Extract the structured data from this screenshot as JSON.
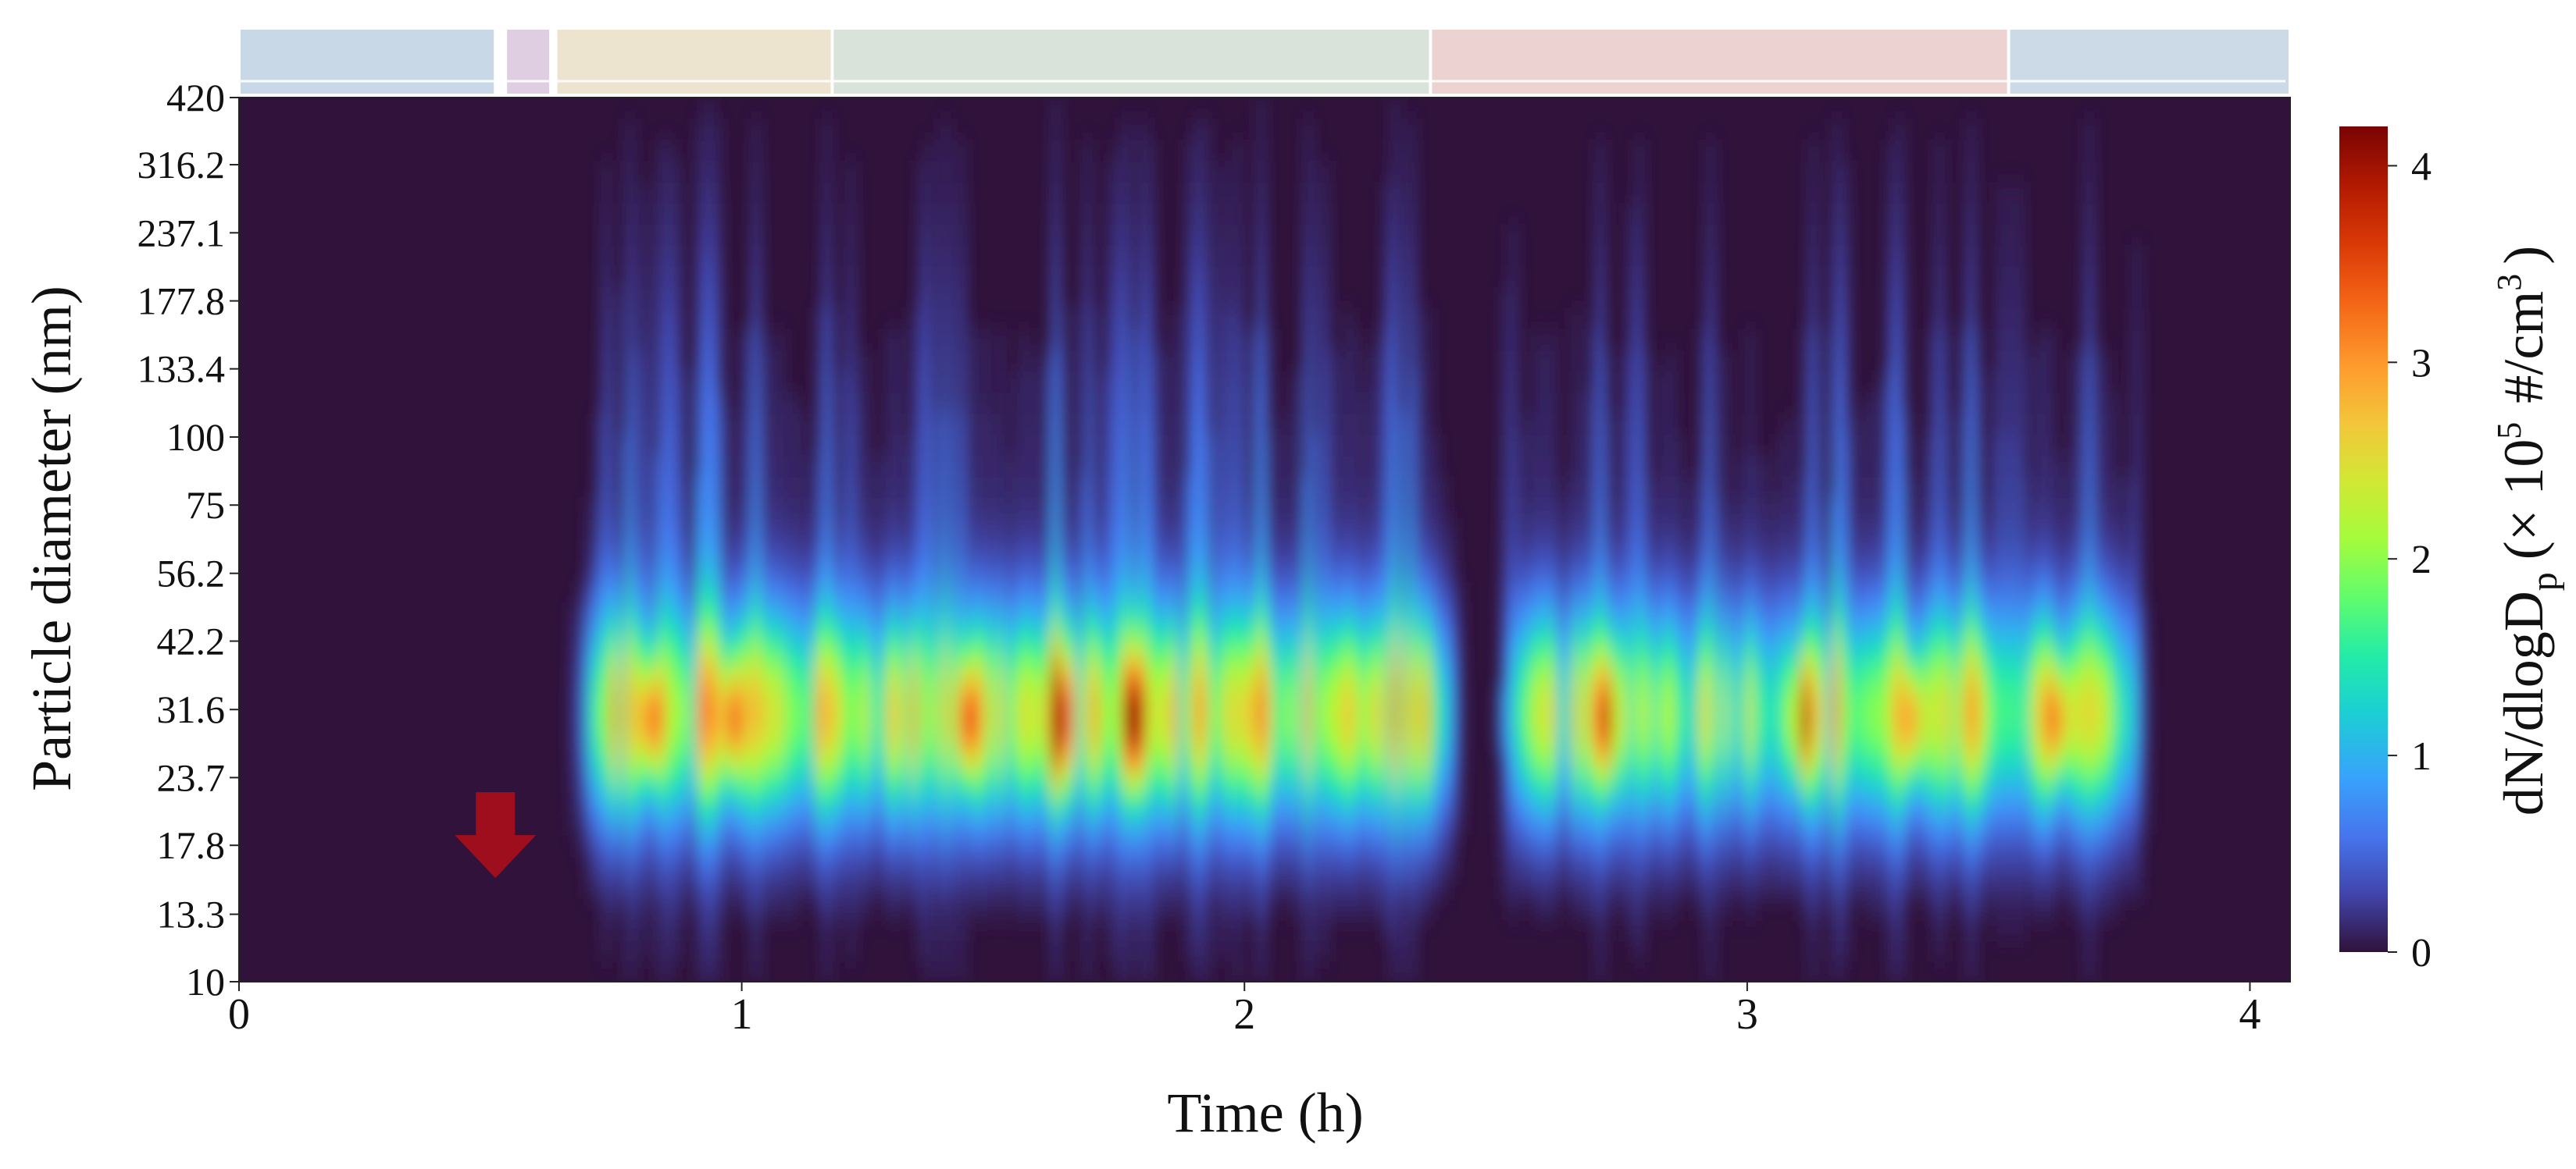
{
  "chart_data": {
    "type": "heatmap",
    "title": "",
    "xlabel": "Time (h)",
    "ylabel": "Particle diameter (nm)",
    "xlim": [
      0,
      4.08
    ],
    "x_ticks": [
      0,
      1,
      2,
      3,
      4
    ],
    "x_tick_labels": [
      "0",
      "1",
      "2",
      "3",
      "4"
    ],
    "y_scale": "log",
    "ylim": [
      10,
      420
    ],
    "y_ticks": [
      10,
      13.3,
      17.8,
      23.7,
      31.6,
      42.2,
      56.2,
      75,
      100,
      133.4,
      177.8,
      237.1,
      316.2,
      420
    ],
    "y_tick_labels": [
      "10",
      "13.3",
      "17.8",
      "23.7",
      "31.6",
      "42.2",
      "56.2",
      "75",
      "100",
      "133.4",
      "177.8",
      "237.1",
      "316.2",
      "420"
    ],
    "colorbar": {
      "label_main": "dN/dlogD",
      "label_sub": "p",
      "label_open": "(× 10",
      "label_exp": "5",
      "label_units": "#/cm",
      "label_units_exp": "3",
      "label_close": ")",
      "range": [
        0,
        4.2
      ],
      "ticks": [
        0,
        1,
        2,
        3,
        4
      ],
      "tick_labels": [
        "0",
        "1",
        "2",
        "3",
        "4"
      ],
      "colormap": "turbo"
    },
    "phase_bands": [
      {
        "start": 0.0,
        "end": 0.51,
        "color": "#c6d6e6"
      },
      {
        "start": 0.53,
        "end": 0.62,
        "color": "#ddcbe0"
      },
      {
        "start": 0.63,
        "end": 1.18,
        "color": "#ece3cd"
      },
      {
        "start": 1.18,
        "end": 2.37,
        "color": "#d7e2d7"
      },
      {
        "start": 2.37,
        "end": 3.52,
        "color": "#ecd0d0"
      },
      {
        "start": 3.52,
        "end": 4.08,
        "color": "#c9d8e6"
      }
    ],
    "marker": {
      "type": "down-arrow",
      "time": 0.51,
      "diameter": 15.5,
      "color": "#9e0e1c"
    },
    "emission_segments": [
      {
        "start": 0.68,
        "end": 2.42,
        "mode_diameter": 31,
        "peak": 3.8
      },
      {
        "start": 2.52,
        "end": 3.78,
        "mode_diameter": 31,
        "peak": 3.4
      }
    ],
    "intensity_peaks": [
      {
        "time": 0.82,
        "value": 4.1
      },
      {
        "time": 0.98,
        "value": 3.5
      },
      {
        "time": 1.45,
        "value": 3.6
      },
      {
        "time": 1.63,
        "value": 3.8
      },
      {
        "time": 1.78,
        "value": 3.6
      },
      {
        "time": 2.72,
        "value": 3.1
      },
      {
        "time": 3.11,
        "value": 3.7
      },
      {
        "time": 3.33,
        "value": 3.5
      },
      {
        "time": 3.62,
        "value": 3.6
      }
    ]
  }
}
